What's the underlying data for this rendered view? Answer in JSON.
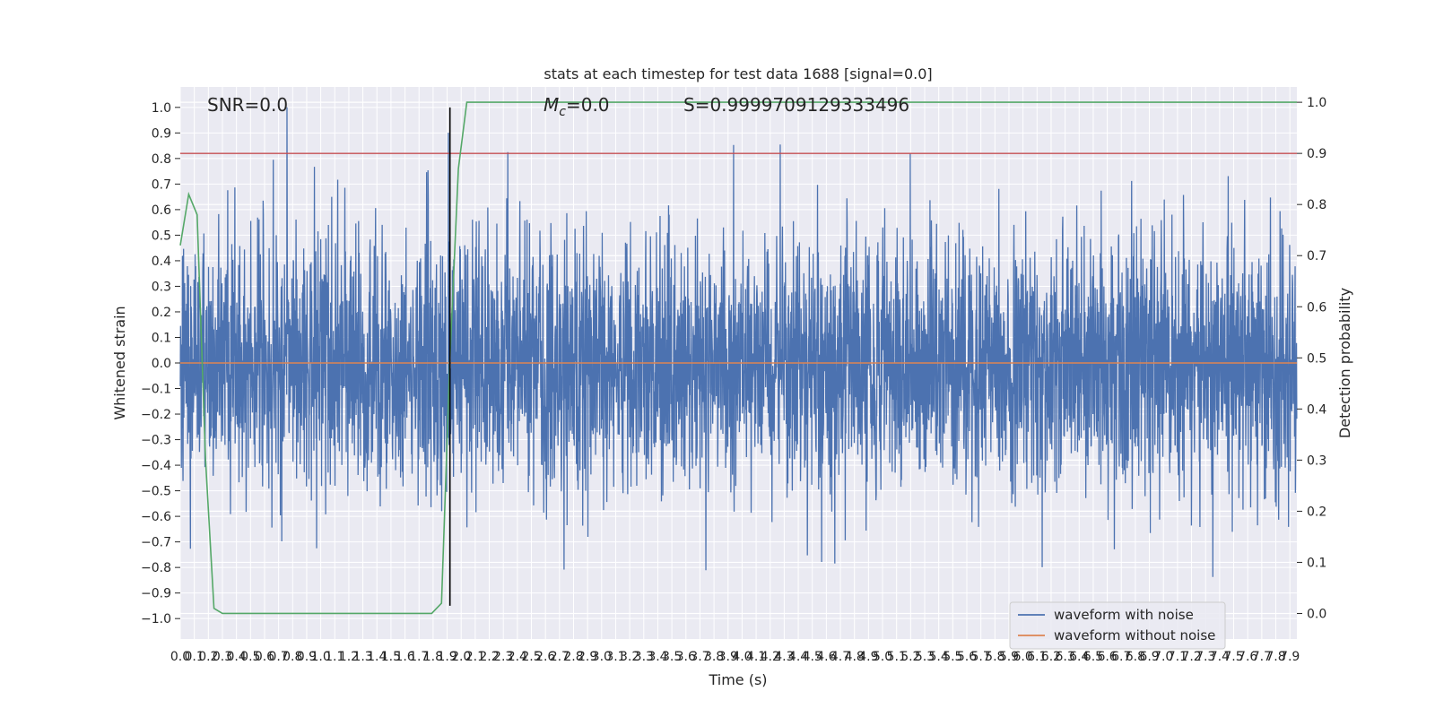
{
  "chart_data": {
    "type": "line",
    "title": "stats at each timestep for test data 1688 [signal=0.0]",
    "xlabel": "Time (s)",
    "ylabel": "Whitened strain",
    "ylabel_right": "Detection probability",
    "xlim": [
      0.0,
      7.95
    ],
    "ylim": [
      -1.08,
      1.08
    ],
    "ylim_right": [
      -0.05,
      1.03
    ],
    "xticks": [
      "0.0",
      "0.1",
      "0.2",
      "0.3",
      "0.4",
      "0.5",
      "0.6",
      "0.7",
      "0.8",
      "0.9",
      "1.0",
      "1.1",
      "1.2",
      "1.3",
      "1.4",
      "1.5",
      "1.6",
      "1.7",
      "1.8",
      "1.9",
      "2.0",
      "2.1",
      "2.2",
      "2.3",
      "2.4",
      "2.5",
      "2.6",
      "2.7",
      "2.8",
      "2.9",
      "3.0",
      "3.1",
      "3.2",
      "3.3",
      "3.4",
      "3.5",
      "3.6",
      "3.7",
      "3.8",
      "3.9",
      "4.0",
      "4.1",
      "4.2",
      "4.3",
      "4.4",
      "4.5",
      "4.6",
      "4.7",
      "4.8",
      "4.9",
      "5.0",
      "5.1",
      "5.2",
      "5.3",
      "5.4",
      "5.5",
      "5.6",
      "5.7",
      "5.8",
      "5.9",
      "6.0",
      "6.1",
      "6.2",
      "6.3",
      "6.4",
      "6.5",
      "6.6",
      "6.7",
      "6.8",
      "6.9",
      "7.0",
      "7.1",
      "7.2",
      "7.3",
      "7.4",
      "7.5",
      "7.6",
      "7.7",
      "7.8",
      "7.9"
    ],
    "yticks": [
      "1.0",
      "0.9",
      "0.8",
      "0.7",
      "0.6",
      "0.5",
      "0.4",
      "0.3",
      "0.2",
      "0.1",
      "0.0",
      "−0.1",
      "−0.2",
      "−0.3",
      "−0.4",
      "−0.5",
      "−0.6",
      "−0.7",
      "−0.8",
      "−0.9",
      "−1.0"
    ],
    "yticks_right": [
      "1.0",
      "0.9",
      "0.8",
      "0.7",
      "0.6",
      "0.5",
      "0.4",
      "0.3",
      "0.2",
      "0.1",
      "0.0"
    ],
    "annotations": {
      "snr": "SNR=0.0",
      "mc_sym": "M",
      "mc_sub": "c",
      "mc_val": "=0.0",
      "s": "S=0.9999709129333496"
    },
    "series": [
      {
        "name": "waveform with noise",
        "color": "#4c72b0",
        "axis": "left",
        "noise_sigma": 0.25,
        "peak": {
          "x": 0.76,
          "y": 1.0
        },
        "sample_rate_hz": 512
      },
      {
        "name": "waveform without noise",
        "color": "#dd8452",
        "axis": "left",
        "x": [
          0.0,
          7.95
        ],
        "y": [
          0.0,
          0.0
        ]
      },
      {
        "name": "detection probability",
        "color": "#55a868",
        "axis": "right",
        "x": [
          0.0,
          0.06,
          0.12,
          0.18,
          0.24,
          0.3,
          1.0,
          1.6,
          1.79,
          1.86,
          1.92,
          1.98,
          2.04,
          2.5,
          7.95
        ],
        "y": [
          0.72,
          0.82,
          0.78,
          0.3,
          0.01,
          0.0,
          0.0,
          0.0,
          0.0,
          0.02,
          0.5,
          0.87,
          1.0,
          1.0,
          1.0
        ]
      }
    ],
    "threshold": {
      "axis": "right",
      "y": 0.9,
      "color": "#c44e52"
    },
    "marker": {
      "x": 1.92,
      "y_range": [
        -0.95,
        1.0
      ],
      "color": "#000000"
    },
    "legend": {
      "placement": "lower-right",
      "entries": [
        "waveform with noise",
        "waveform without noise"
      ]
    },
    "grid": true,
    "background": "#eaeaf2"
  }
}
